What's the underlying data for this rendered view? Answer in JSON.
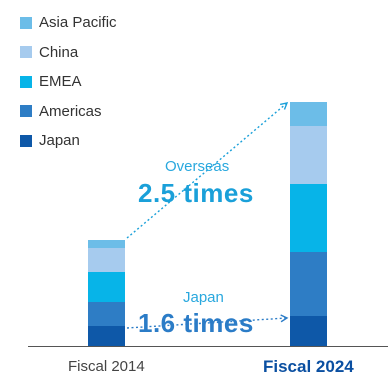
{
  "chart_data": {
    "type": "bar",
    "stacked": true,
    "categories": [
      "Fiscal 2014",
      "Fiscal 2024"
    ],
    "highlight_category": "Fiscal 2024",
    "series": [
      {
        "name": "Japan",
        "color": "#0e58a8",
        "values": [
          20,
          30
        ]
      },
      {
        "name": "Americas",
        "color": "#2e7dc5",
        "values": [
          24,
          64
        ]
      },
      {
        "name": "EMEA",
        "color": "#07b4e8",
        "values": [
          30,
          68
        ]
      },
      {
        "name": "China",
        "color": "#a6cbee",
        "values": [
          24,
          58
        ]
      },
      {
        "name": "Asia Pacific",
        "color": "#6cbde8",
        "values": [
          8,
          24
        ]
      }
    ],
    "legend": {
      "placement": "top-left"
    },
    "annotations": [
      {
        "from": "Fiscal 2014",
        "to": "Fiscal 2024",
        "label": "Overseas",
        "value": "2.5 times"
      },
      {
        "from": "Fiscal 2014",
        "to": "Fiscal 2024",
        "label": "Japan",
        "value": "1.6 times"
      }
    ],
    "grid": false
  }
}
